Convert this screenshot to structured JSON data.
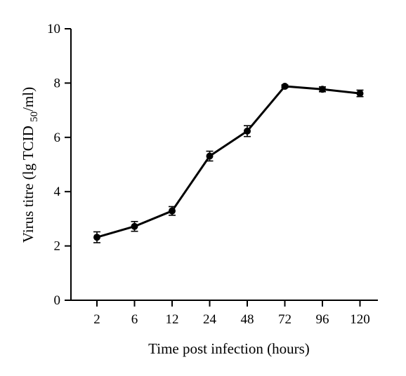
{
  "chart_data": {
    "type": "line",
    "title": "",
    "xlabel": "Time post infection (hours)",
    "ylabel": {
      "prefix": "Virus titre (lg TCID ",
      "subscript": "50",
      "suffix": "/ml)"
    },
    "categories": [
      "2",
      "6",
      "12",
      "24",
      "48",
      "72",
      "96",
      "120"
    ],
    "series": [
      {
        "values": [
          2.32,
          2.72,
          3.29,
          5.31,
          6.23,
          7.88,
          7.77,
          7.62
        ],
        "error": [
          0.2,
          0.18,
          0.16,
          0.18,
          0.2,
          0.05,
          0.09,
          0.12
        ],
        "color": "#000000"
      }
    ],
    "ylim": [
      0,
      10
    ],
    "yticks": [
      "0",
      "2",
      "4",
      "6",
      "8",
      "10"
    ],
    "grid": false,
    "legend": "none"
  }
}
